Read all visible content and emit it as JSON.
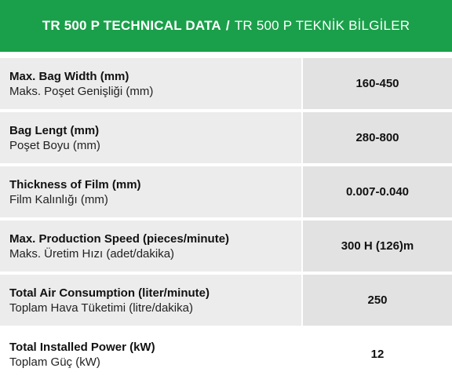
{
  "header": {
    "title_en": "TR 500 P TECHNICAL DATA",
    "separator": "/",
    "title_tr": "TR 500 P TEKNİK BİLGİLER"
  },
  "rows": [
    {
      "en": "Max. Bag Width (mm)",
      "tr": "Maks. Poşet Genişliği (mm)",
      "value": "160-450"
    },
    {
      "en": "Bag Lengt (mm)",
      "tr": "Poşet Boyu (mm)",
      "value": "280-800"
    },
    {
      "en": "Thickness of Film (mm)",
      "tr": "Film Kalınlığı (mm)",
      "value": "0.007-0.040"
    },
    {
      "en": "Max. Production Speed (pieces/minute)",
      "tr": "Maks. Üretim Hızı (adet/dakika)",
      "value": "300 H (126)m"
    },
    {
      "en": "Total Air Consumption (liter/minute)",
      "tr": "Toplam Hava Tüketimi (litre/dakika)",
      "value": "250"
    },
    {
      "en": "Total Installed Power (kW)",
      "tr": "Toplam Güç (kW)",
      "value": "12"
    }
  ],
  "colors": {
    "header_bg": "#1aa04a",
    "row_bg": "#ececec"
  }
}
